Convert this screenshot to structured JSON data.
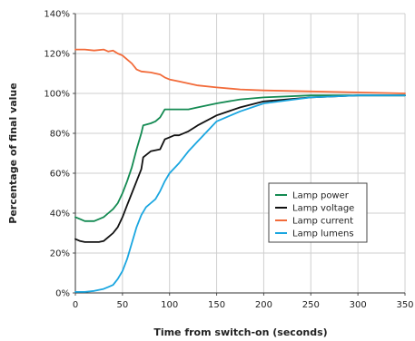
{
  "chart_data": {
    "type": "line",
    "title": "",
    "xlabel": "Time from switch-on (seconds)",
    "ylabel": "Percentage of final value",
    "xlim": [
      0,
      350
    ],
    "ylim": [
      0,
      140
    ],
    "x_ticks": [
      "0",
      "50",
      "100",
      "150",
      "200",
      "250",
      "300",
      "350"
    ],
    "x_tick_values": [
      0,
      50,
      100,
      150,
      200,
      250,
      300,
      350
    ],
    "y_ticks": [
      "0%",
      "20%",
      "40%",
      "60%",
      "80%",
      "100%",
      "120%",
      "140%"
    ],
    "y_tick_values": [
      0,
      20,
      40,
      60,
      80,
      100,
      120,
      140
    ],
    "grid": true,
    "legend_position": "lower-right",
    "series": [
      {
        "name": "Lamp power",
        "color": "#138a52",
        "points": [
          [
            0,
            38
          ],
          [
            5,
            37
          ],
          [
            10,
            36
          ],
          [
            20,
            36
          ],
          [
            30,
            38
          ],
          [
            35,
            40
          ],
          [
            40,
            42
          ],
          [
            45,
            45
          ],
          [
            50,
            50
          ],
          [
            55,
            56
          ],
          [
            60,
            63
          ],
          [
            65,
            72
          ],
          [
            70,
            80
          ],
          [
            72,
            84
          ],
          [
            80,
            85
          ],
          [
            85,
            86
          ],
          [
            90,
            88
          ],
          [
            95,
            92
          ],
          [
            100,
            92
          ],
          [
            110,
            92
          ],
          [
            120,
            92
          ],
          [
            130,
            93
          ],
          [
            150,
            95
          ],
          [
            175,
            97
          ],
          [
            200,
            98
          ],
          [
            250,
            99
          ],
          [
            300,
            99
          ],
          [
            350,
            99
          ]
        ]
      },
      {
        "name": "Lamp voltage",
        "color": "#111111",
        "points": [
          [
            0,
            27
          ],
          [
            5,
            26
          ],
          [
            10,
            25.5
          ],
          [
            25,
            25.5
          ],
          [
            30,
            26
          ],
          [
            35,
            28
          ],
          [
            40,
            30
          ],
          [
            45,
            33
          ],
          [
            50,
            38
          ],
          [
            55,
            44
          ],
          [
            60,
            50
          ],
          [
            65,
            56
          ],
          [
            70,
            62
          ],
          [
            72,
            68
          ],
          [
            80,
            71
          ],
          [
            90,
            72
          ],
          [
            95,
            77
          ],
          [
            100,
            78
          ],
          [
            105,
            79
          ],
          [
            110,
            79
          ],
          [
            120,
            81
          ],
          [
            130,
            84
          ],
          [
            150,
            89
          ],
          [
            175,
            93
          ],
          [
            200,
            96
          ],
          [
            250,
            98
          ],
          [
            300,
            99
          ],
          [
            350,
            99
          ]
        ]
      },
      {
        "name": "Lamp current",
        "color": "#f26b3a",
        "points": [
          [
            0,
            122
          ],
          [
            10,
            122
          ],
          [
            20,
            121.5
          ],
          [
            30,
            122
          ],
          [
            35,
            121
          ],
          [
            40,
            121.5
          ],
          [
            45,
            120
          ],
          [
            50,
            119
          ],
          [
            55,
            117
          ],
          [
            60,
            115
          ],
          [
            65,
            112
          ],
          [
            70,
            111
          ],
          [
            80,
            110.5
          ],
          [
            90,
            109.5
          ],
          [
            95,
            108
          ],
          [
            100,
            107
          ],
          [
            110,
            106
          ],
          [
            120,
            105
          ],
          [
            130,
            104
          ],
          [
            150,
            103
          ],
          [
            175,
            102
          ],
          [
            200,
            101.5
          ],
          [
            250,
            101
          ],
          [
            300,
            100.5
          ],
          [
            350,
            100
          ]
        ]
      },
      {
        "name": "Lamp lumens",
        "color": "#1aa6e0",
        "points": [
          [
            0,
            0.5
          ],
          [
            10,
            0.5
          ],
          [
            20,
            1
          ],
          [
            30,
            2
          ],
          [
            35,
            3
          ],
          [
            40,
            4
          ],
          [
            45,
            7
          ],
          [
            50,
            11
          ],
          [
            55,
            17
          ],
          [
            60,
            25
          ],
          [
            65,
            33
          ],
          [
            70,
            39
          ],
          [
            75,
            43
          ],
          [
            80,
            45
          ],
          [
            85,
            47
          ],
          [
            90,
            51
          ],
          [
            95,
            56
          ],
          [
            100,
            60
          ],
          [
            110,
            65
          ],
          [
            120,
            71
          ],
          [
            130,
            76
          ],
          [
            140,
            81
          ],
          [
            150,
            86
          ],
          [
            160,
            88
          ],
          [
            175,
            91
          ],
          [
            200,
            95
          ],
          [
            250,
            98
          ],
          [
            300,
            99
          ],
          [
            350,
            99
          ]
        ]
      }
    ]
  }
}
